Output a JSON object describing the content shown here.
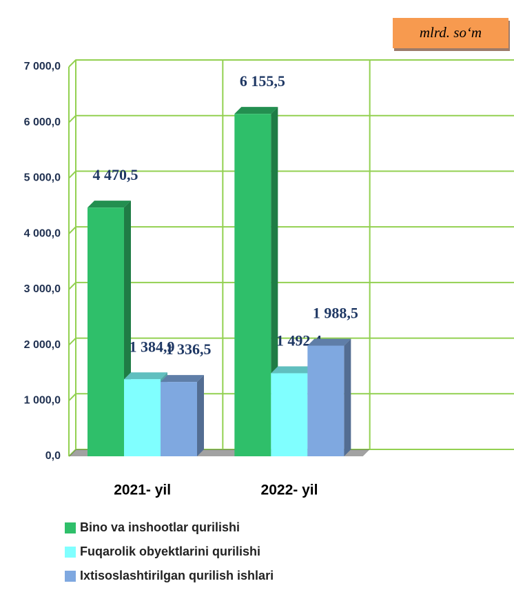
{
  "chart_data": {
    "type": "bar",
    "unit_label": "mlrd. so‘m",
    "categories": [
      "2021- yil",
      "2022- yil",
      null
    ],
    "series": [
      {
        "name": "Bino va inshootlar qurilishi",
        "color": "#2fbf6a",
        "values": [
          4470.5,
          6155.5,
          null
        ],
        "value_labels": [
          "4 470,5",
          "6 155,5",
          null
        ]
      },
      {
        "name": "Fuqarolik obyektlarini qurilishi",
        "color": "#80ffff",
        "values": [
          1384.9,
          1492.4,
          null
        ],
        "value_labels": [
          "1 384,9",
          "1 492,4",
          null
        ]
      },
      {
        "name": "Ixtisoslashtirilgan qurilish ishlari",
        "color": "#7fa8e0",
        "values": [
          1336.5,
          1988.5,
          null
        ],
        "value_labels": [
          "1 336,5",
          "1 988,5",
          null
        ]
      }
    ],
    "ylim": [
      0,
      7000
    ],
    "yticks": [
      {
        "value": 0,
        "label": "0,0"
      },
      {
        "value": 1000,
        "label": "1 000,0"
      },
      {
        "value": 2000,
        "label": "2 000,0"
      },
      {
        "value": 3000,
        "label": "3 000,0"
      },
      {
        "value": 4000,
        "label": "4 000,0"
      },
      {
        "value": 5000,
        "label": "5 000,0"
      },
      {
        "value": 6000,
        "label": "6 000,0"
      },
      {
        "value": 7000,
        "label": "7 000,0"
      }
    ],
    "grid": true
  }
}
